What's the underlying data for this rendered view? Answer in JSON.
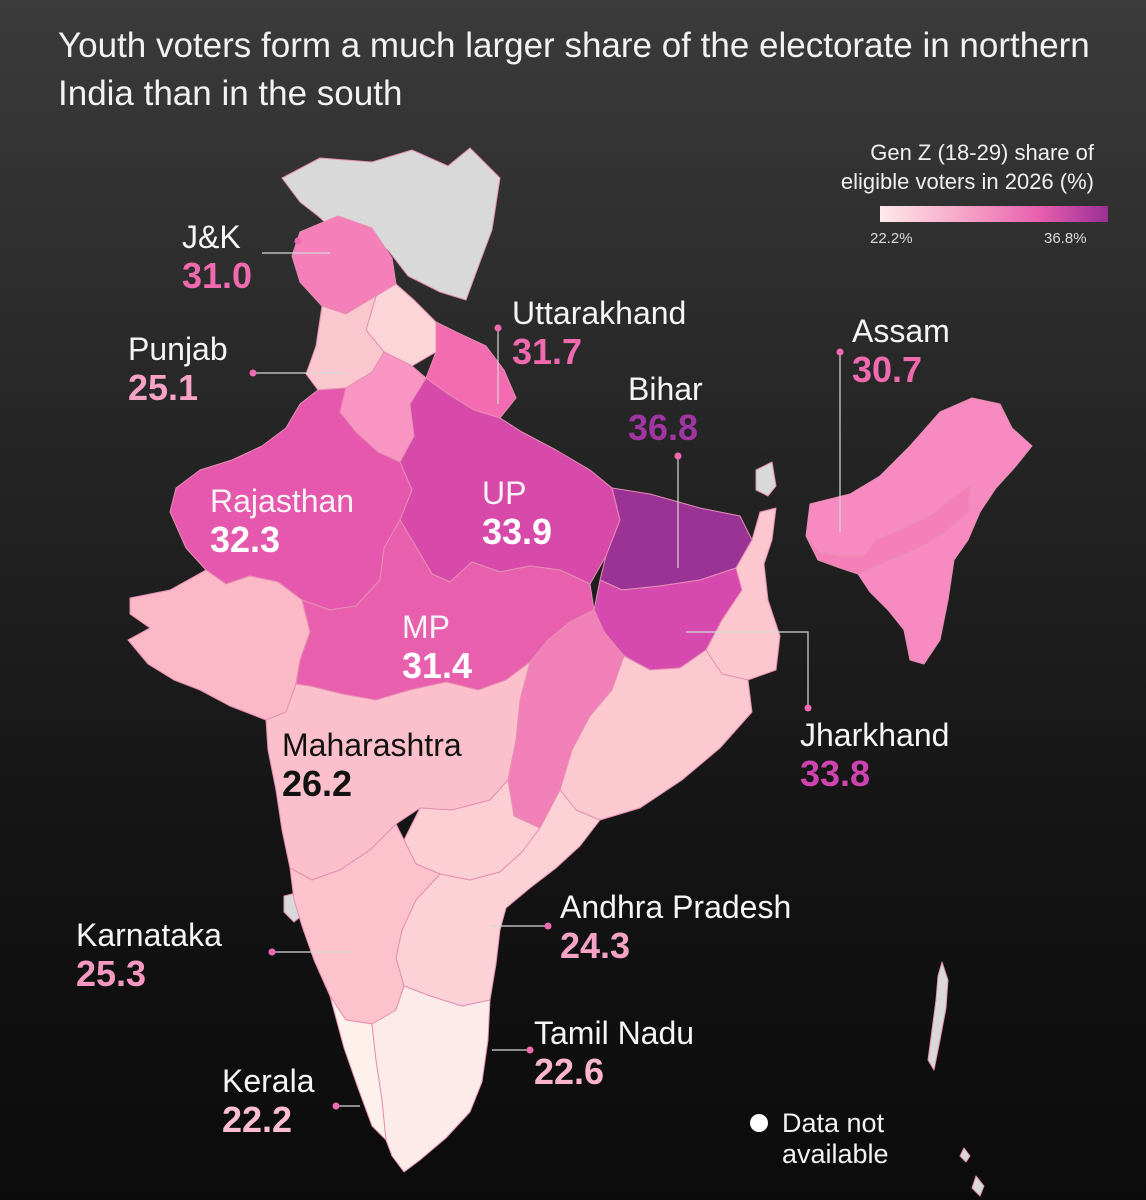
{
  "title": "Youth voters form a much larger share of the electorate in northern India than in the south",
  "legend": {
    "title_line1": "Gen Z (18-29) share of",
    "title_line2": "eligible voters in 2026 (%)",
    "min_label": "22.2%",
    "max_label": "36.8%",
    "color_low": "#fde9ea",
    "color_high": "#9a2f96"
  },
  "no_data_label_line1": "Data not",
  "no_data_label_line2": "available",
  "colors": {
    "no_data": "#d9d9d9",
    "jk": "#f57fb8",
    "punjab": "#fbc7cf",
    "uttarakhand": "#f36bb0",
    "rajasthan": "#e658ad",
    "up": "#d84aaa",
    "bihar": "#9b3397",
    "assam": "#f57fb8",
    "mp": "#e85fae",
    "jharkhand": "#d64ab0",
    "maharashtra": "#fcc0cc",
    "karnataka": "#fcc3cd",
    "andhra": "#fcd2d6",
    "tamilnadu": "#fdebea",
    "kerala": "#fef1ec",
    "odisha": "#fcc9d0",
    "chhattisgarh": "#f280b8",
    "gujarat": "#fbb8c6",
    "haryana": "#f895c3",
    "himachal": "#fcd5d8",
    "bengal": "#fcc7cf",
    "telangana": "#fccfd4",
    "northeast": "#f78ac0"
  },
  "states": [
    {
      "key": "jk",
      "name": "J&K",
      "value": 31.0,
      "value_label": "31.0",
      "value_color": "#f06aaf"
    },
    {
      "key": "punjab",
      "name": "Punjab",
      "value": 25.1,
      "value_label": "25.1",
      "value_color": "#f7a3c5"
    },
    {
      "key": "uttarakhand",
      "name": "Uttarakhand",
      "value": 31.7,
      "value_label": "31.7",
      "value_color": "#f06aaf"
    },
    {
      "key": "bihar",
      "name": "Bihar",
      "value": 36.8,
      "value_label": "36.8",
      "value_color": "#a136a3"
    },
    {
      "key": "assam",
      "name": "Assam",
      "value": 30.7,
      "value_label": "30.7",
      "value_color": "#f06aaf"
    },
    {
      "key": "rajasthan",
      "name": "Rajasthan",
      "value": 32.3,
      "value_label": "32.3",
      "value_color": "#ffffff"
    },
    {
      "key": "up",
      "name": "UP",
      "value": 33.9,
      "value_label": "33.9",
      "value_color": "#ffffff"
    },
    {
      "key": "mp",
      "name": "MP",
      "value": 31.4,
      "value_label": "31.4",
      "value_color": "#ffffff"
    },
    {
      "key": "jharkhand",
      "name": "Jharkhand",
      "value": 33.8,
      "value_label": "33.8",
      "value_color": "#cf44b0"
    },
    {
      "key": "maharashtra",
      "name": "Maharashtra",
      "value": 26.2,
      "value_label": "26.2",
      "value_color": "#111111"
    },
    {
      "key": "andhra",
      "name": "Andhra Pradesh",
      "value": 24.3,
      "value_label": "24.3",
      "value_color": "#f7a3c5"
    },
    {
      "key": "karnataka",
      "name": "Karnataka",
      "value": 25.3,
      "value_label": "25.3",
      "value_color": "#f598c2"
    },
    {
      "key": "tamilnadu",
      "name": "Tamil Nadu",
      "value": 22.6,
      "value_label": "22.6",
      "value_color": "#fbb6cc"
    },
    {
      "key": "kerala",
      "name": "Kerala",
      "value": 22.2,
      "value_label": "22.2",
      "value_color": "#fbbfd1"
    }
  ]
}
